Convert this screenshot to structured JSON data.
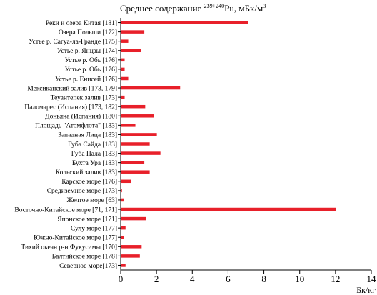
{
  "chart_data": {
    "type": "bar",
    "orientation": "horizontal",
    "title": {
      "prefix": "Среднее содержание ",
      "superscript": "239+240",
      "element": "Pu",
      "suffix": ", мБк/м",
      "suffix_sup": "3"
    },
    "xlabel": "Бк/кг",
    "xlim": [
      0,
      14
    ],
    "xticks": [
      "0",
      "2",
      "4",
      "6",
      "8",
      "10",
      "12",
      "14"
    ],
    "bar_color": "#e8202a",
    "grid": false,
    "categories": [
      "Реки и озера Китая [181]",
      "Озера Польши [172]",
      "Устье р. Сагуа-ла-Гранде [175]",
      "Устье р. Янцзы [174]",
      "Устье р. Обь [176]",
      "Устье р. Обь [176]",
      "Устье р. Енисей [176]",
      "Мексиканский залив [173, 179]",
      "Теуантепек залив [173]",
      "Паломарес (Испания) [173, 182]",
      "Доньяна (Испания) [180]",
      "Площадь \"Атомфлота\" [183]",
      "Западная Лица [183]",
      "Губа Сайда [183]",
      "Губа Пала [183]",
      "Бухта Ура [183]",
      "Кольский залив [183]",
      "Карское море [176]",
      "Средиземное море [173]",
      "Желтое море [63]",
      "Восточно-Китайское море [71, 171]",
      "Японское море [171]",
      "Сулу море [177]",
      "Южно-Китайское море [177]",
      "Тихий океан р-н Фукусимы [170]",
      "Балтийское море [178]",
      "Северное море[173]"
    ],
    "values": [
      7.1,
      1.3,
      0.4,
      1.1,
      0.2,
      0.2,
      0.4,
      3.3,
      0.2,
      1.35,
      1.85,
      0.8,
      2.0,
      1.6,
      2.2,
      1.3,
      1.6,
      0.55,
      0.05,
      0.15,
      12.0,
      1.4,
      0.25,
      0.15,
      1.15,
      1.05,
      0.25
    ]
  }
}
